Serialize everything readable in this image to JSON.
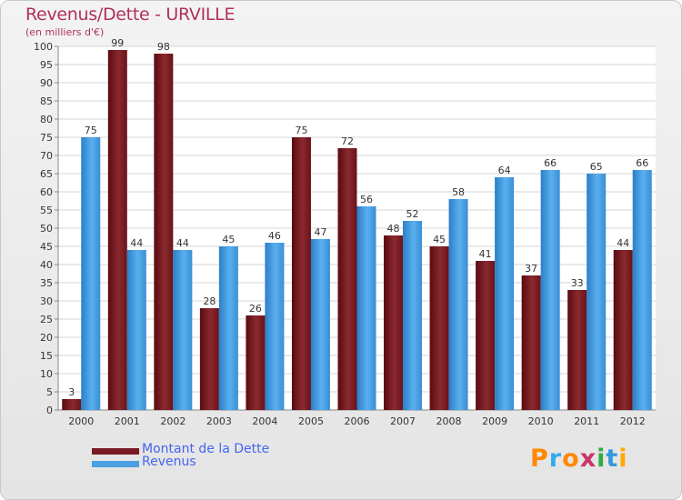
{
  "chart_data": {
    "type": "bar",
    "title": "Revenus/Dette - URVILLE",
    "subtitle": "(en milliers d'€)",
    "categories": [
      "2000",
      "2001",
      "2002",
      "2003",
      "2004",
      "2005",
      "2006",
      "2007",
      "2008",
      "2009",
      "2010",
      "2011",
      "2012"
    ],
    "series": [
      {
        "name": "Montant de la Dette",
        "color": "#7a1a22",
        "values": [
          3,
          99,
          98,
          28,
          26,
          75,
          72,
          48,
          45,
          41,
          37,
          33,
          44
        ]
      },
      {
        "name": "Revenus",
        "color": "#4aa0e0",
        "values": [
          75,
          44,
          44,
          45,
          46,
          47,
          56,
          52,
          58,
          64,
          66,
          65,
          66
        ]
      }
    ],
    "ylim": [
      0,
      100
    ],
    "ytick_step": 5,
    "grid": true,
    "legend_position": "bottom-left"
  },
  "logo": {
    "text": "Proxiti",
    "colors": [
      "#ff8800",
      "#33aaee",
      "#ff8800",
      "#cc3366",
      "#33aa44",
      "#3399dd",
      "#ffaa00"
    ]
  }
}
